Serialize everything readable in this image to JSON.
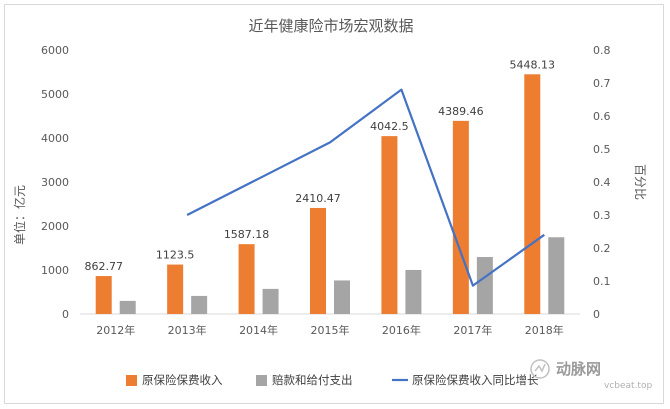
{
  "chart_data": {
    "type": "bar",
    "title": "近年健康险市场宏观数据",
    "ylabel": "单位：亿元",
    "y2label": "百分比",
    "categories": [
      "2012年",
      "2013年",
      "2014年",
      "2015年",
      "2016年",
      "2017年",
      "2018年"
    ],
    "ylim": [
      0,
      6000
    ],
    "yticks": [
      0,
      1000,
      2000,
      3000,
      4000,
      5000,
      6000
    ],
    "y2lim": [
      0,
      0.8
    ],
    "y2ticks": [
      "0",
      "0.1",
      "0.2",
      "0.3",
      "0.4",
      "0.5",
      "0.6",
      "0.7",
      "0.8"
    ],
    "grid": false,
    "legend_position": "bottom",
    "series": [
      {
        "name": "原保险保费收入",
        "type": "bar",
        "color": "#ed7d31",
        "values": [
          862.77,
          1123.5,
          1587.18,
          2410.47,
          4042.5,
          4389.46,
          5448.13
        ],
        "labels": [
          "862.77",
          "1123.5",
          "1587.18",
          "2410.47",
          "4042.5",
          "4389.46",
          "5448.13"
        ]
      },
      {
        "name": "赔款和给付支出",
        "type": "bar",
        "color": "#a5a5a5",
        "values": [
          298,
          411,
          571,
          763,
          1001,
          1295,
          1744
        ]
      },
      {
        "name": "原保险保费收入同比增长",
        "type": "line",
        "axis": "secondary",
        "color": "#4472c4",
        "values": [
          null,
          0.3,
          0.41,
          0.52,
          0.68,
          0.086,
          0.24
        ]
      }
    ]
  },
  "watermark": {
    "text": "动脉网",
    "subtext": "vcbeat.top"
  }
}
